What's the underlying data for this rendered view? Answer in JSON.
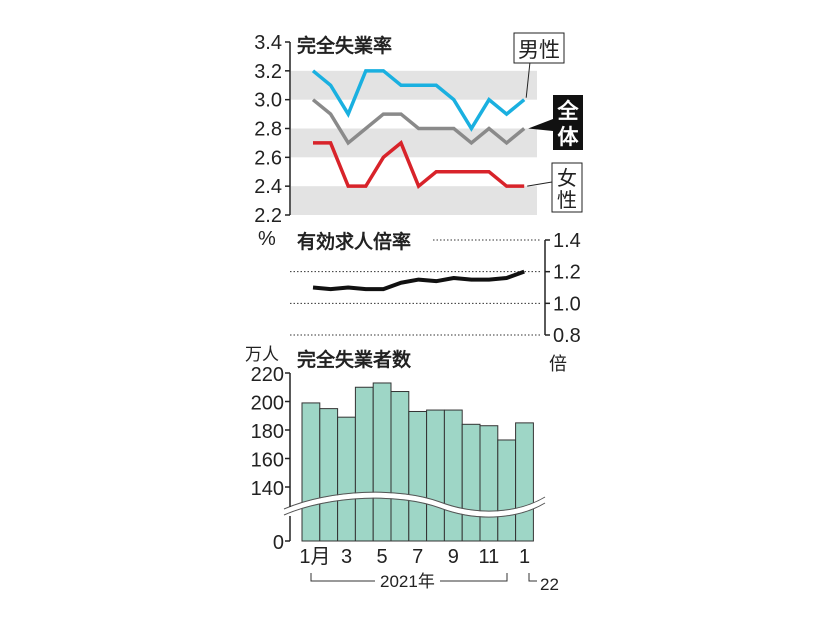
{
  "chart_data": [
    {
      "type": "line",
      "title": "完全失業率",
      "ylabel": "%",
      "ylim": [
        2.2,
        3.4
      ],
      "yticks": [
        "3.4",
        "3.2",
        "3.0",
        "2.8",
        "2.6",
        "2.4",
        "2.2"
      ],
      "grid_bands": true,
      "x": [
        "2021-01",
        "2021-02",
        "2021-03",
        "2021-04",
        "2021-05",
        "2021-06",
        "2021-07",
        "2021-08",
        "2021-09",
        "2021-10",
        "2021-11",
        "2021-12",
        "2022-01"
      ],
      "series": [
        {
          "name": "男性",
          "color": "#1ab0e0",
          "values": [
            3.2,
            3.1,
            2.9,
            3.2,
            3.2,
            3.1,
            3.1,
            3.1,
            3.0,
            2.8,
            3.0,
            2.9,
            3.0
          ]
        },
        {
          "name": "全体",
          "color": "#8a8a8a",
          "values": [
            3.0,
            2.9,
            2.7,
            2.8,
            2.9,
            2.9,
            2.8,
            2.8,
            2.8,
            2.7,
            2.8,
            2.7,
            2.8
          ]
        },
        {
          "name": "女性",
          "color": "#d8232a",
          "values": [
            2.7,
            2.7,
            2.4,
            2.4,
            2.6,
            2.7,
            2.4,
            2.5,
            2.5,
            2.5,
            2.5,
            2.4,
            2.4
          ]
        }
      ]
    },
    {
      "type": "line",
      "title": "有効求人倍率",
      "ylabel": "倍",
      "ylim": [
        0.8,
        1.4
      ],
      "yticks": [
        "1.4",
        "1.2",
        "1.0",
        "0.8"
      ],
      "grid": "dotted",
      "series": [
        {
          "color": "#111111",
          "values": [
            1.1,
            1.09,
            1.1,
            1.09,
            1.09,
            1.13,
            1.15,
            1.14,
            1.16,
            1.15,
            1.15,
            1.16,
            1.2
          ]
        }
      ]
    },
    {
      "type": "bar",
      "title": "完全失業者数",
      "ylabel": "万人",
      "ylim": [
        0,
        220
      ],
      "axis_break": [
        0,
        140
      ],
      "yticks": [
        "220",
        "200",
        "180",
        "160",
        "140",
        "0"
      ],
      "color": "#9ed6c6",
      "values": [
        199,
        195,
        189,
        210,
        213,
        207,
        193,
        194,
        194,
        184,
        183,
        173,
        185
      ],
      "xtick_labels": [
        "1月",
        "3",
        "5",
        "7",
        "9",
        "11",
        "1"
      ],
      "year_labels": [
        "2021年",
        "22"
      ]
    }
  ]
}
